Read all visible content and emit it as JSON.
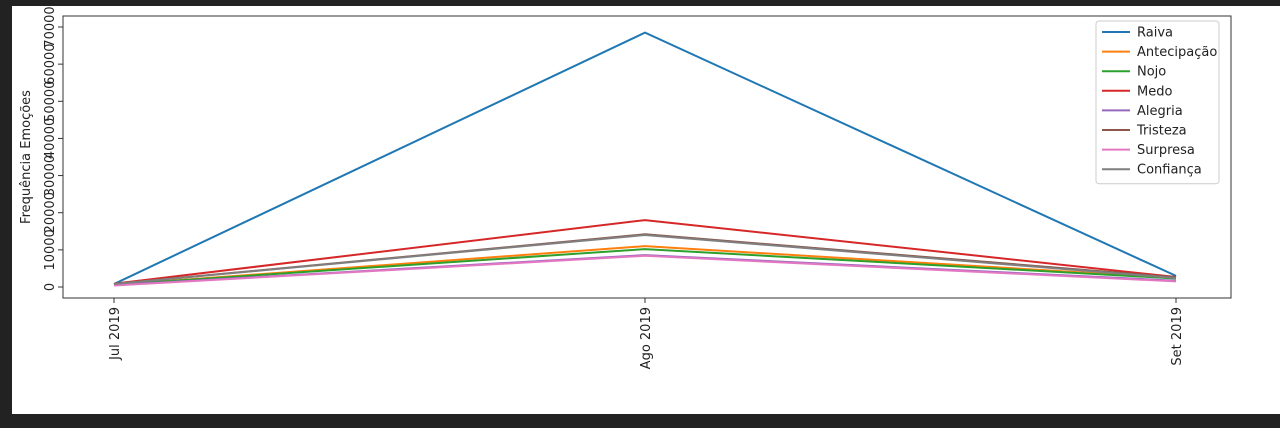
{
  "chart_data": {
    "type": "line",
    "categories": [
      "Jul 2019",
      "Ago 2019",
      "Set 2019"
    ],
    "ylabel": "Frequência Emoções",
    "ylim": [
      0,
      70000
    ],
    "yticks": [
      0,
      10000,
      20000,
      30000,
      40000,
      50000,
      60000,
      70000
    ],
    "yticks_labels": [
      "0",
      "10000",
      "20000",
      "30000",
      "40000",
      "50000",
      "60000",
      "70000"
    ],
    "legend_position": "top-right",
    "grid": false,
    "series": [
      {
        "name": "Raiva",
        "color": "#1f77b4",
        "values": [
          800,
          68500,
          3000
        ]
      },
      {
        "name": "Antecipação",
        "color": "#ff7f0e",
        "values": [
          600,
          11000,
          2400
        ]
      },
      {
        "name": "Nojo",
        "color": "#2ca02c",
        "values": [
          600,
          10200,
          2300
        ]
      },
      {
        "name": "Medo",
        "color": "#d62728",
        "values": [
          900,
          18000,
          2700
        ]
      },
      {
        "name": "Alegria",
        "color": "#9467bd",
        "values": [
          500,
          8600,
          1700
        ]
      },
      {
        "name": "Tristeza",
        "color": "#8c564b",
        "values": [
          800,
          14200,
          2600
        ]
      },
      {
        "name": "Surpresa",
        "color": "#e377c2",
        "values": [
          400,
          8400,
          1500
        ]
      },
      {
        "name": "Confiança",
        "color": "#7f7f7f",
        "values": [
          800,
          14000,
          2400
        ]
      }
    ]
  }
}
